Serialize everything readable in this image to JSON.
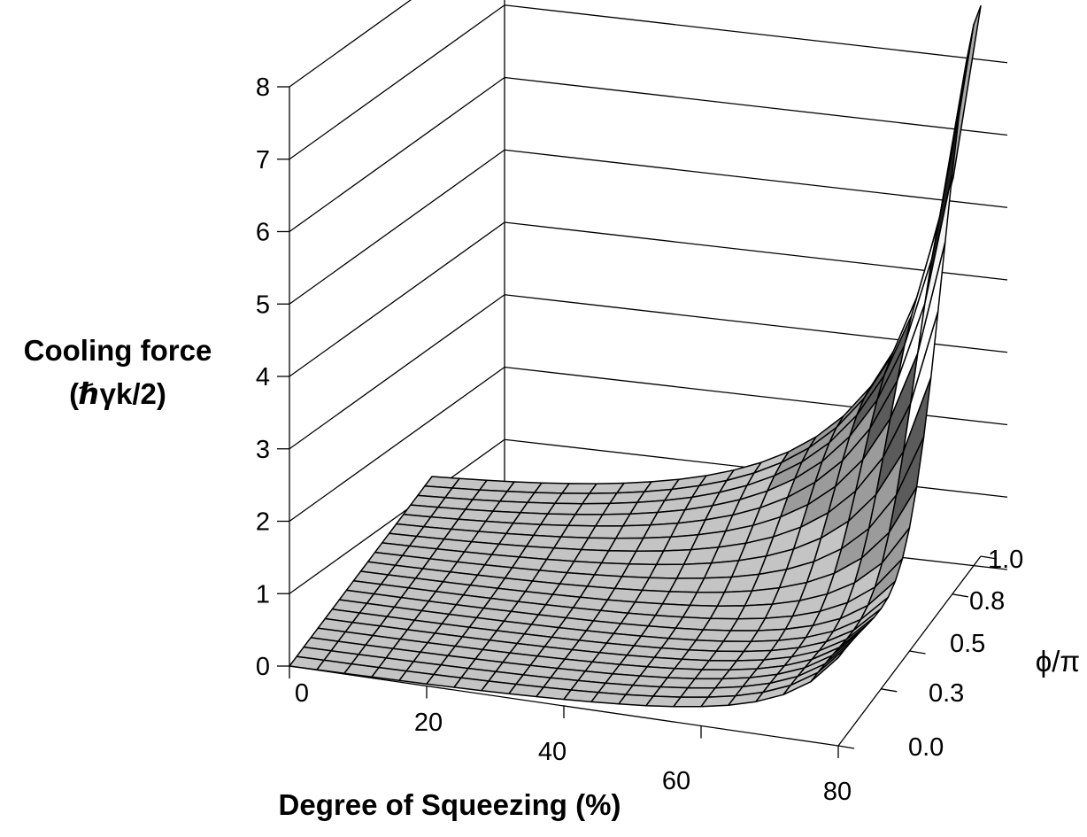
{
  "chart_data": {
    "type": "surface",
    "title": "",
    "zlabel_line1": "Cooling force",
    "zlabel_line2": "(ℏγk/2)",
    "xlabel": "Degree of Squeezing (%)",
    "ylabel": "ϕ/π",
    "x_ticks": [
      "0",
      "20",
      "40",
      "60",
      "80"
    ],
    "y_ticks": [
      "0.0",
      "0.3",
      "0.5",
      "0.8",
      "1.0"
    ],
    "z_ticks": [
      "0",
      "1",
      "2",
      "3",
      "4",
      "5",
      "6",
      "7",
      "8"
    ],
    "xlim": [
      0,
      80
    ],
    "ylim": [
      0,
      1
    ],
    "zlim": [
      0,
      8
    ],
    "grid": true,
    "x": [
      0,
      4,
      8,
      12,
      16,
      20,
      24,
      28,
      32,
      36,
      40,
      44,
      48,
      52,
      56,
      60,
      64,
      68,
      72,
      76,
      80
    ],
    "y": [
      0.0,
      0.05,
      0.1,
      0.15,
      0.2,
      0.25,
      0.3,
      0.35,
      0.4,
      0.45,
      0.5,
      0.55,
      0.6,
      0.65,
      0.7,
      0.75,
      0.8,
      0.85,
      0.9,
      0.95,
      1.0
    ],
    "sample_values": [
      {
        "x": 0,
        "y": 0.0,
        "z": 0.0
      },
      {
        "x": 60,
        "y": 1.0,
        "z": 1.6
      },
      {
        "x": 80,
        "y": 0.5,
        "z": 1.3
      },
      {
        "x": 80,
        "y": 0.9,
        "z": 4.5
      },
      {
        "x": 80,
        "y": 1.0,
        "z": 7.6
      }
    ],
    "color_bands": [
      "#c4c4c4",
      "#9b9b9b",
      "#5b5b5b",
      "#ffffff",
      "#f4f4f4",
      "#1f1f1f",
      "#a9a9a9",
      "#4f4f4f",
      "#d6d6d6"
    ]
  }
}
